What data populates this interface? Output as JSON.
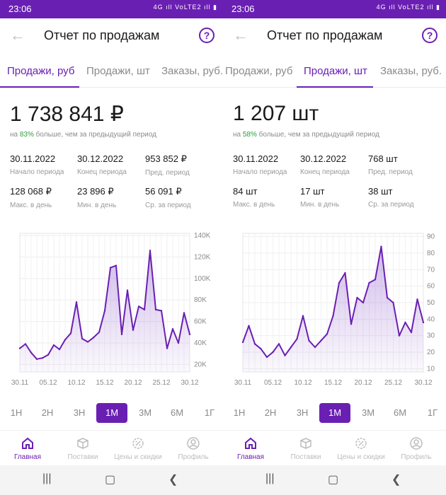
{
  "screens": [
    {
      "status": {
        "time": "23:06",
        "icons": "4G ıll VoLTE2 ıll ▮"
      },
      "title": "Отчет по продажам",
      "tabs": [
        "Продажи, руб",
        "Продажи, шт",
        "Заказы, руб."
      ],
      "active_tab": 0,
      "total": "1 738 841  ₽",
      "delta_prefix": "на ",
      "delta_pct": "83%",
      "delta_suffix": " больше, чем за предыдущий период",
      "stats": [
        {
          "value": "30.11.2022",
          "label": "Начало периода"
        },
        {
          "value": "30.12.2022",
          "label": "Конец периода"
        },
        {
          "value": "953 852  ₽",
          "label": "Пред. период"
        },
        {
          "value": "128 068  ₽",
          "label": "Макс. в день"
        },
        {
          "value": "23 896  ₽",
          "label": "Мин. в день"
        },
        {
          "value": "56 091  ₽",
          "label": "Ср. за период"
        }
      ],
      "periods": [
        "1Н",
        "2Н",
        "3Н",
        "1М",
        "3М",
        "6М",
        "1Г"
      ],
      "active_period": "1М",
      "nav": [
        "Главная",
        "Поставки",
        "Цены и скидки",
        "Профиль"
      ],
      "colors": {
        "accent": "#6a1fb3",
        "positive": "#2e9e3a"
      }
    },
    {
      "status": {
        "time": "23:06",
        "icons": "4G ıll VoLTE2 ıll ▮"
      },
      "title": "Отчет по продажам",
      "tabs": [
        "Продажи, руб",
        "Продажи, шт",
        "Заказы, руб."
      ],
      "active_tab": 1,
      "total": "1 207 шт",
      "delta_prefix": "на ",
      "delta_pct": "58%",
      "delta_suffix": " больше, чем за предыдущий период",
      "stats": [
        {
          "value": "30.11.2022",
          "label": "Начало периода"
        },
        {
          "value": "30.12.2022",
          "label": "Конец периода"
        },
        {
          "value": "768 шт",
          "label": "Пред. период"
        },
        {
          "value": "84 шт",
          "label": "Макс. в день"
        },
        {
          "value": "17 шт",
          "label": "Мин. в день"
        },
        {
          "value": "38 шт",
          "label": "Ср. за период"
        }
      ],
      "periods": [
        "1Н",
        "2Н",
        "3Н",
        "1М",
        "3М",
        "6М",
        "1Г"
      ],
      "active_period": "1М",
      "nav": [
        "Главная",
        "Поставки",
        "Цены и скидки",
        "Профиль"
      ],
      "colors": {
        "accent": "#6a1fb3",
        "positive": "#2e9e3a"
      }
    }
  ],
  "chart_data": [
    {
      "type": "area",
      "x": [
        "30.11",
        "01.12",
        "02.12",
        "03.12",
        "04.12",
        "05.12",
        "06.12",
        "07.12",
        "08.12",
        "09.12",
        "10.12",
        "11.12",
        "12.12",
        "13.12",
        "14.12",
        "15.12",
        "16.12",
        "17.12",
        "18.12",
        "19.12",
        "20.12",
        "21.12",
        "22.12",
        "23.12",
        "24.12",
        "25.12",
        "26.12",
        "27.12",
        "28.12",
        "29.12",
        "30.12"
      ],
      "x_tick_labels": [
        "30.11",
        "05.12",
        "10.12",
        "15.12",
        "20.12",
        "25.12",
        "30.12"
      ],
      "y_tick_labels": [
        "20K",
        "40K",
        "60K",
        "80K",
        "100K",
        "120K",
        "140K"
      ],
      "values": [
        35000,
        39000,
        31000,
        25000,
        26000,
        29000,
        38000,
        34000,
        43000,
        49000,
        78000,
        44000,
        41000,
        45000,
        50000,
        70000,
        110000,
        112000,
        48000,
        89000,
        52000,
        74000,
        71000,
        126000,
        71000,
        70000,
        35000,
        53000,
        40000,
        68000,
        48000
      ],
      "ylim": [
        13000,
        142000
      ],
      "grid": true
    },
    {
      "type": "area",
      "x": [
        "30.11",
        "01.12",
        "02.12",
        "03.12",
        "04.12",
        "05.12",
        "06.12",
        "07.12",
        "08.12",
        "09.12",
        "10.12",
        "11.12",
        "12.12",
        "13.12",
        "14.12",
        "15.12",
        "16.12",
        "17.12",
        "18.12",
        "19.12",
        "20.12",
        "21.12",
        "22.12",
        "23.12",
        "24.12",
        "25.12",
        "26.12",
        "27.12",
        "28.12",
        "29.12",
        "30.12"
      ],
      "x_tick_labels": [
        "30.11",
        "05.12",
        "10.12",
        "15.12",
        "20.12",
        "25.12",
        "30.12"
      ],
      "y_tick_labels": [
        "10",
        "20",
        "30",
        "40",
        "50",
        "60",
        "70",
        "80",
        "90"
      ],
      "values": [
        26,
        36,
        25,
        22,
        17,
        20,
        25,
        18,
        23,
        28,
        42,
        27,
        23,
        27,
        31,
        42,
        62,
        68,
        37,
        53,
        50,
        62,
        64,
        84,
        53,
        50,
        30,
        38,
        32,
        52,
        38
      ],
      "ylim": [
        8,
        92
      ],
      "grid": true
    }
  ]
}
